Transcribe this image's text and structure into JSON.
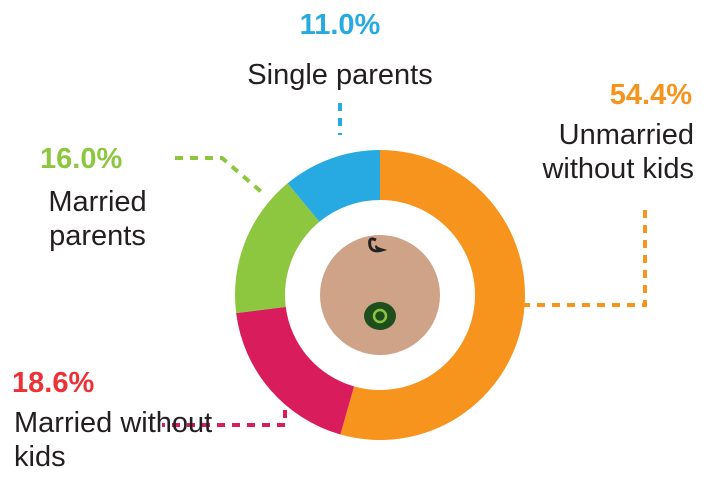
{
  "chart_data": {
    "type": "donut",
    "categories": [
      "Unmarried without kids",
      "Married without kids",
      "Married parents",
      "Single parents"
    ],
    "values": [
      54.4,
      18.6,
      16.0,
      11.0
    ],
    "value_labels": [
      "54.4%",
      "18.6%",
      "16.0%",
      "11.0%"
    ],
    "colors": [
      "#f7941d",
      "#d91c5c",
      "#8dc63f",
      "#27aae1"
    ],
    "label_colors": [
      "#f7941d",
      "#ed3237",
      "#8dc63f",
      "#27aae1"
    ]
  }
}
